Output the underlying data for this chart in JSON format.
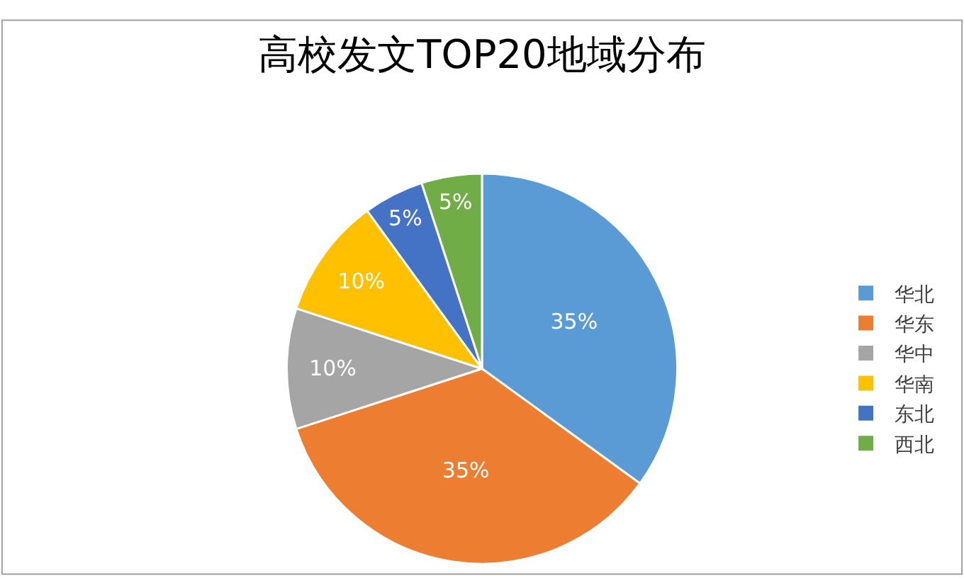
{
  "chart_data": {
    "type": "pie",
    "title": "高校发文TOP20地域分布",
    "categories": [
      "华北",
      "华东",
      "华中",
      "华南",
      "东北",
      "西北"
    ],
    "values": [
      35,
      35,
      10,
      10,
      5,
      5
    ],
    "colors": [
      "#5b9bd5",
      "#ed7d31",
      "#a5a5a5",
      "#ffc000",
      "#4472c4",
      "#70ad47"
    ],
    "value_labels": [
      "35%",
      "35%",
      "10%",
      "10%",
      "5%",
      "5%"
    ],
    "legend": "right"
  }
}
